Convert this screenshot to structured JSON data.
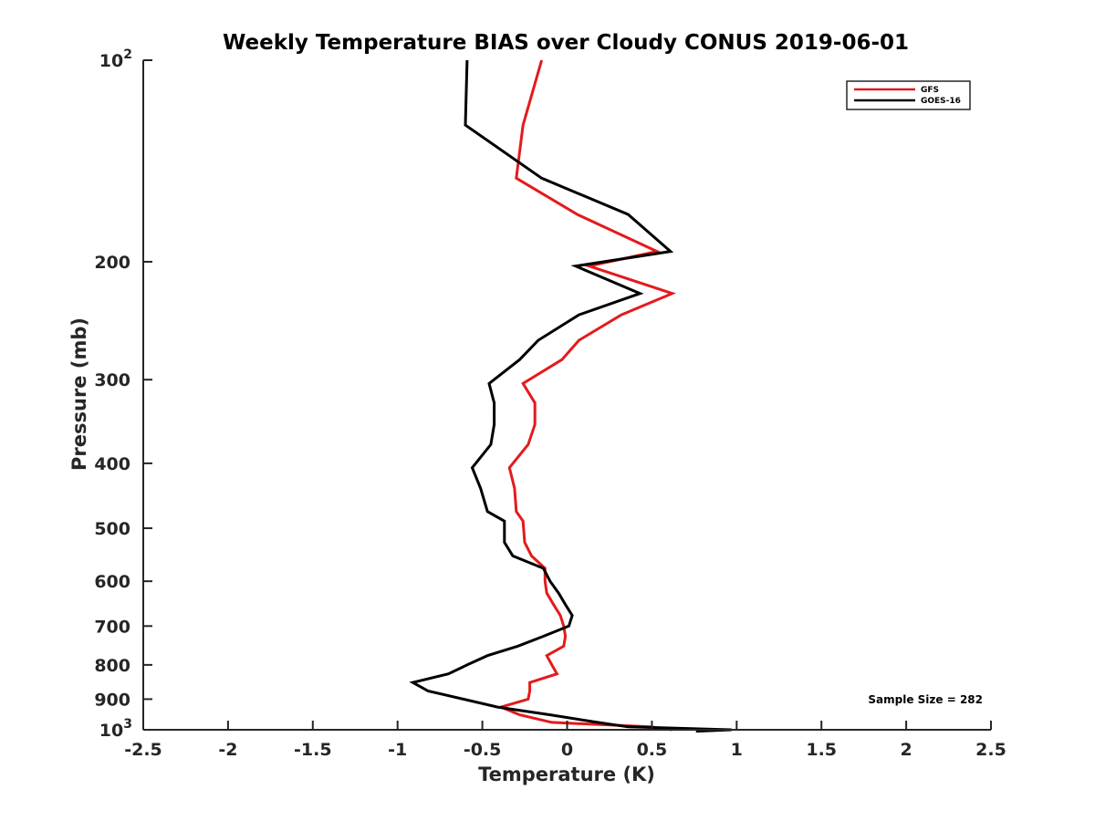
{
  "chart_data": {
    "type": "line",
    "title": "Weekly Temperature BIAS over Cloudy CONUS 2019-06-01",
    "xlabel": "Temperature (K)",
    "ylabel": "Pressure (mb)",
    "xlim": [
      -2.5,
      2.5
    ],
    "ylim": [
      100,
      1000
    ],
    "yscale": "log",
    "y_reversed": true,
    "grid": false,
    "legend_position": "top-right",
    "x_ticks": [
      -2.5,
      -2,
      -1.5,
      -1,
      -0.5,
      0,
      0.5,
      1,
      1.5,
      2,
      2.5
    ],
    "x_tick_labels": [
      "-2.5",
      "-2",
      "-1.5",
      "-1",
      "-0.5",
      "0",
      "0.5",
      "1",
      "1.5",
      "2",
      "2.5"
    ],
    "y_ticks": [
      {
        "value": 100,
        "base": "10",
        "exp": "2"
      },
      {
        "value": 200,
        "label": "200"
      },
      {
        "value": 300,
        "label": "300"
      },
      {
        "value": 400,
        "label": "400"
      },
      {
        "value": 500,
        "label": "500"
      },
      {
        "value": 600,
        "label": "600"
      },
      {
        "value": 700,
        "label": "700"
      },
      {
        "value": 800,
        "label": "800"
      },
      {
        "value": 900,
        "label": "900"
      },
      {
        "value": 1000,
        "base": "10",
        "exp": "3"
      }
    ],
    "series": [
      {
        "name": "GFS",
        "color": "#e41a1c",
        "points": [
          [
            -0.15,
            100
          ],
          [
            -0.26,
            125
          ],
          [
            -0.3,
            150
          ],
          [
            0.06,
            170
          ],
          [
            0.53,
            193
          ],
          [
            0.13,
            203
          ],
          [
            0.62,
            223
          ],
          [
            0.32,
            240
          ],
          [
            0.07,
            262
          ],
          [
            -0.03,
            280
          ],
          [
            -0.26,
            304
          ],
          [
            -0.19,
            325
          ],
          [
            -0.19,
            350
          ],
          [
            -0.23,
            375
          ],
          [
            -0.34,
            406
          ],
          [
            -0.31,
            436
          ],
          [
            -0.3,
            472
          ],
          [
            -0.26,
            488
          ],
          [
            -0.25,
            525
          ],
          [
            -0.21,
            550
          ],
          [
            -0.13,
            574
          ],
          [
            -0.13,
            600
          ],
          [
            -0.12,
            625
          ],
          [
            -0.08,
            650
          ],
          [
            -0.04,
            675
          ],
          [
            -0.02,
            700
          ],
          [
            -0.01,
            725
          ],
          [
            -0.02,
            750
          ],
          [
            -0.12,
            775
          ],
          [
            -0.09,
            800
          ],
          [
            -0.06,
            825
          ],
          [
            -0.22,
            850
          ],
          [
            -0.22,
            875
          ],
          [
            -0.23,
            900
          ],
          [
            -0.39,
            925
          ],
          [
            -0.28,
            950
          ],
          [
            -0.09,
            975
          ],
          [
            0.49,
            990
          ],
          [
            0.62,
            1000
          ]
        ]
      },
      {
        "name": "GOES-16",
        "color": "#000000",
        "points": [
          [
            -0.59,
            100
          ],
          [
            -0.6,
            125
          ],
          [
            -0.15,
            150
          ],
          [
            0.36,
            170
          ],
          [
            0.61,
            193
          ],
          [
            0.05,
            203
          ],
          [
            0.43,
            223
          ],
          [
            0.07,
            240
          ],
          [
            -0.17,
            262
          ],
          [
            -0.28,
            280
          ],
          [
            -0.46,
            304
          ],
          [
            -0.43,
            325
          ],
          [
            -0.43,
            350
          ],
          [
            -0.45,
            375
          ],
          [
            -0.56,
            406
          ],
          [
            -0.51,
            436
          ],
          [
            -0.47,
            472
          ],
          [
            -0.37,
            488
          ],
          [
            -0.37,
            525
          ],
          [
            -0.32,
            550
          ],
          [
            -0.14,
            574
          ],
          [
            -0.1,
            600
          ],
          [
            -0.05,
            625
          ],
          [
            -0.01,
            650
          ],
          [
            0.03,
            675
          ],
          [
            0.01,
            700
          ],
          [
            -0.14,
            725
          ],
          [
            -0.29,
            750
          ],
          [
            -0.47,
            775
          ],
          [
            -0.59,
            800
          ],
          [
            -0.7,
            825
          ],
          [
            -0.91,
            850
          ],
          [
            -0.82,
            875
          ],
          [
            -0.41,
            925
          ],
          [
            -0.1,
            950
          ],
          [
            0.18,
            975
          ],
          [
            0.36,
            990
          ],
          [
            0.97,
            1000
          ],
          [
            0.76,
            1005
          ]
        ]
      }
    ],
    "annotations": [
      {
        "text": "Sample Size = 282",
        "position": "bottom-right"
      }
    ]
  }
}
